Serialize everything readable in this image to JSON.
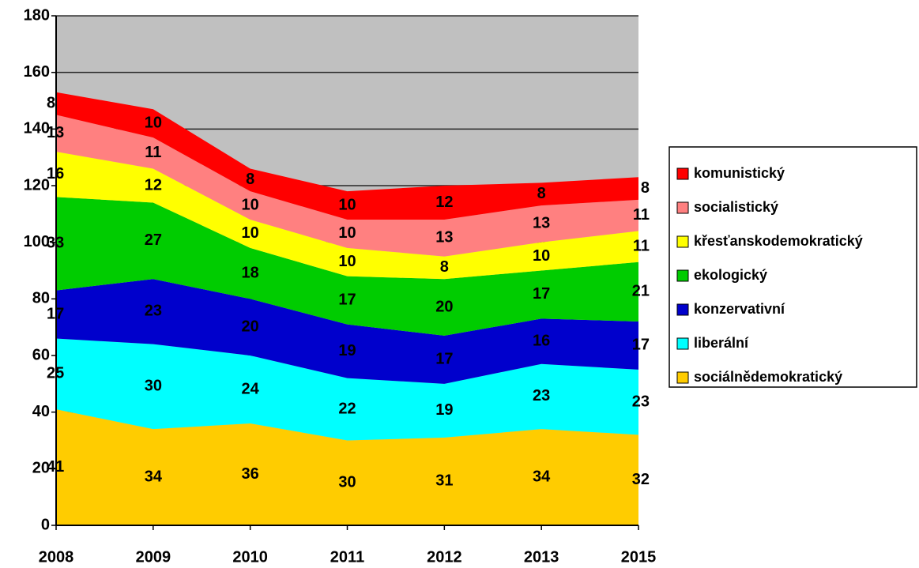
{
  "chart_data": {
    "type": "stacked_area",
    "categories": [
      "2008",
      "2009",
      "2010",
      "2011",
      "2012",
      "2013",
      "2015"
    ],
    "series": [
      {
        "name": "sociálnědemokratický",
        "color": "#ffcc00",
        "values": [
          41,
          34,
          36,
          30,
          31,
          34,
          32
        ]
      },
      {
        "name": "liberální",
        "color": "#00ffff",
        "values": [
          25,
          30,
          24,
          22,
          19,
          23,
          23
        ]
      },
      {
        "name": "konzervativní",
        "color": "#0000cc",
        "values": [
          17,
          23,
          20,
          19,
          17,
          16,
          17
        ]
      },
      {
        "name": "ekologický",
        "color": "#00cc00",
        "values": [
          33,
          27,
          18,
          17,
          20,
          17,
          21
        ]
      },
      {
        "name": "křesťanskodemokratický",
        "color": "#ffff00",
        "values": [
          16,
          12,
          10,
          10,
          8,
          10,
          11
        ]
      },
      {
        "name": "socialistický",
        "color": "#ff8080",
        "values": [
          13,
          11,
          10,
          10,
          13,
          13,
          11
        ]
      },
      {
        "name": "komunistický",
        "color": "#ff0000",
        "values": [
          8,
          10,
          8,
          10,
          12,
          8,
          8
        ]
      }
    ],
    "ylim": [
      0,
      180
    ],
    "yticks": [
      0,
      20,
      40,
      60,
      80,
      100,
      120,
      140,
      160,
      180
    ],
    "grid": true,
    "plot_background": "#c0c0c0",
    "legend": "right"
  }
}
